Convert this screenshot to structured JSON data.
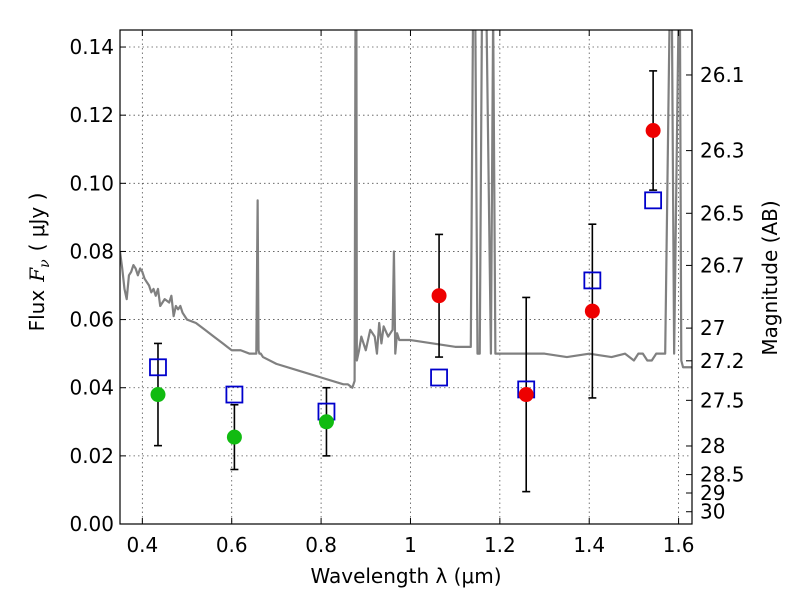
{
  "chart_data": {
    "type": "scatter",
    "xlabel": "Wavelength  λ (μm)",
    "ylabel_left": "Flux",
    "ylabel_left_symbol": "F",
    "ylabel_left_sub": "ν",
    "ylabel_left_unit": "( μJy )",
    "ylabel_right": "Magnitude (AB)",
    "xlim": [
      0.35,
      1.63
    ],
    "ylim": [
      0.0,
      0.145
    ],
    "grid": true,
    "x_ticks": [
      {
        "value": 0.4,
        "label": "0.4"
      },
      {
        "value": 0.6,
        "label": "0.6"
      },
      {
        "value": 0.8,
        "label": "0.8"
      },
      {
        "value": 1.0,
        "label": "1"
      },
      {
        "value": 1.2,
        "label": "1.2"
      },
      {
        "value": 1.4,
        "label": "1.4"
      },
      {
        "value": 1.6,
        "label": "1.6"
      }
    ],
    "y_ticks": [
      {
        "value": 0.0,
        "label": "0.00"
      },
      {
        "value": 0.02,
        "label": "0.02"
      },
      {
        "value": 0.04,
        "label": "0.04"
      },
      {
        "value": 0.06,
        "label": "0.06"
      },
      {
        "value": 0.08,
        "label": "0.08"
      },
      {
        "value": 0.1,
        "label": "0.10"
      },
      {
        "value": 0.12,
        "label": "0.12"
      },
      {
        "value": 0.14,
        "label": "0.14"
      }
    ],
    "right_ticks": [
      {
        "flux": 0.1318,
        "label": "26.1"
      },
      {
        "flux": 0.1096,
        "label": "26.3"
      },
      {
        "flux": 0.0912,
        "label": "26.5"
      },
      {
        "flux": 0.0759,
        "label": "26.7"
      },
      {
        "flux": 0.0575,
        "label": "27"
      },
      {
        "flux": 0.0479,
        "label": "27.2"
      },
      {
        "flux": 0.0363,
        "label": "27.5"
      },
      {
        "flux": 0.0229,
        "label": "28"
      },
      {
        "flux": 0.0145,
        "label": "28.5"
      },
      {
        "flux": 0.0091,
        "label": "29"
      },
      {
        "flux": 0.0036,
        "label": "30"
      }
    ],
    "colors": {
      "spectrum": "#808080",
      "model": "#0000cc",
      "observed_high": "#ee0000",
      "observed_low": "#11bb11",
      "errorbar": "#000000",
      "grid": "#555555"
    },
    "series": [
      {
        "name": "Model spectrum",
        "style": "line",
        "x": [
          0.35,
          0.355,
          0.36,
          0.365,
          0.37,
          0.375,
          0.38,
          0.385,
          0.39,
          0.395,
          0.4,
          0.405,
          0.41,
          0.415,
          0.42,
          0.425,
          0.43,
          0.435,
          0.44,
          0.45,
          0.46,
          0.465,
          0.47,
          0.475,
          0.48,
          0.485,
          0.49,
          0.5,
          0.52,
          0.54,
          0.56,
          0.58,
          0.59,
          0.6,
          0.62,
          0.64,
          0.655,
          0.658,
          0.66,
          0.662,
          0.665,
          0.67,
          0.7,
          0.75,
          0.8,
          0.85,
          0.86,
          0.87,
          0.875,
          0.877,
          0.879,
          0.88,
          0.885,
          0.89,
          0.9,
          0.91,
          0.92,
          0.925,
          0.93,
          0.935,
          0.94,
          0.95,
          0.96,
          0.963,
          0.966,
          0.97,
          0.975,
          1.0,
          1.05,
          1.1,
          1.12,
          1.135,
          1.14,
          1.145,
          1.15,
          1.155,
          1.16,
          1.17,
          1.18,
          1.185,
          1.19,
          1.195,
          1.2,
          1.25,
          1.3,
          1.35,
          1.4,
          1.45,
          1.48,
          1.5,
          1.51,
          1.52,
          1.53,
          1.54,
          1.55,
          1.57,
          1.58,
          1.585,
          1.59,
          1.6,
          1.603,
          1.606,
          1.61,
          1.63
        ],
        "y": [
          0.08,
          0.075,
          0.069,
          0.066,
          0.073,
          0.074,
          0.076,
          0.075,
          0.073,
          0.075,
          0.074,
          0.072,
          0.071,
          0.07,
          0.068,
          0.069,
          0.067,
          0.069,
          0.064,
          0.066,
          0.065,
          0.067,
          0.061,
          0.064,
          0.063,
          0.064,
          0.062,
          0.06,
          0.059,
          0.057,
          0.055,
          0.053,
          0.052,
          0.051,
          0.051,
          0.05,
          0.05,
          0.095,
          0.051,
          0.05,
          0.05,
          0.049,
          0.047,
          0.045,
          0.043,
          0.041,
          0.041,
          0.04,
          0.042,
          0.15,
          0.15,
          0.048,
          0.051,
          0.055,
          0.051,
          0.057,
          0.055,
          0.05,
          0.059,
          0.053,
          0.058,
          0.055,
          0.057,
          0.08,
          0.05,
          0.056,
          0.054,
          0.054,
          0.053,
          0.052,
          0.052,
          0.052,
          0.15,
          0.15,
          0.05,
          0.05,
          0.15,
          0.15,
          0.05,
          0.15,
          0.05,
          0.05,
          0.05,
          0.05,
          0.05,
          0.049,
          0.05,
          0.049,
          0.05,
          0.048,
          0.05,
          0.05,
          0.048,
          0.048,
          0.05,
          0.05,
          0.15,
          0.15,
          0.05,
          0.15,
          0.15,
          0.048,
          0.046,
          0.046
        ]
      },
      {
        "name": "Model photometry",
        "style": "open-square",
        "x": [
          0.435,
          0.606,
          0.812,
          1.064,
          1.259,
          1.407,
          1.543
        ],
        "y": [
          0.046,
          0.038,
          0.033,
          0.043,
          0.0395,
          0.0715,
          0.095
        ]
      },
      {
        "name": "Observed",
        "style": "filled-circle",
        "x": [
          0.435,
          0.606,
          0.812,
          1.064,
          1.259,
          1.407,
          1.543
        ],
        "y": [
          0.038,
          0.0255,
          0.03,
          0.067,
          0.038,
          0.0625,
          0.1155
        ],
        "yerr_low": [
          0.015,
          0.0095,
          0.01,
          0.018,
          0.0285,
          0.0255,
          0.0175
        ],
        "yerr_high": [
          0.015,
          0.0095,
          0.01,
          0.018,
          0.0285,
          0.0255,
          0.0175
        ],
        "color_class": [
          "low",
          "low",
          "low",
          "high",
          "high",
          "high",
          "high"
        ]
      }
    ]
  }
}
